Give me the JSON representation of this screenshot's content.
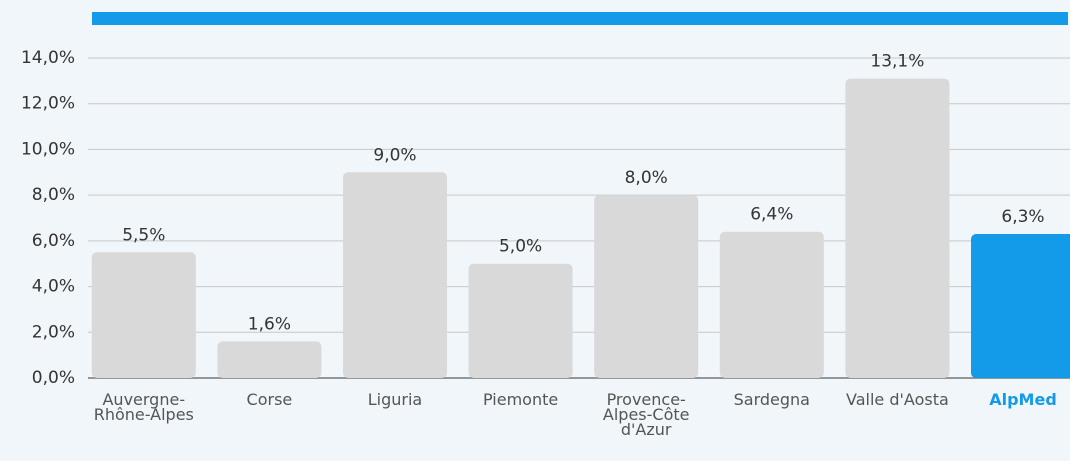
{
  "chart_data": {
    "type": "bar",
    "categories": [
      "Auvergne-Rhône-Alpes",
      "Corse",
      "Liguria",
      "Piemonte",
      "Provence-Alpes-Côte d'Azur",
      "Sardegna",
      "Valle d'Aosta",
      "AlpMed"
    ],
    "values": [
      5.5,
      1.6,
      9.0,
      5.0,
      8.0,
      6.4,
      13.1,
      6.3
    ],
    "value_labels": [
      "5,5%",
      "1,6%",
      "9,0%",
      "5,0%",
      "8,0%",
      "6,4%",
      "13,1%",
      "6,3%"
    ],
    "colors": [
      "#d9d9d9",
      "#d9d9d9",
      "#d9d9d9",
      "#d9d9d9",
      "#d9d9d9",
      "#d9d9d9",
      "#d9d9d9",
      "#139bea"
    ],
    "ylim": [
      0,
      14
    ],
    "yticks": [
      {
        "value": 0,
        "label": "0,0%"
      },
      {
        "value": 2,
        "label": "2,0%"
      },
      {
        "value": 4,
        "label": "4,0%"
      },
      {
        "value": 6,
        "label": "6,0%"
      },
      {
        "value": 8,
        "label": "8,0%"
      },
      {
        "value": 10,
        "label": "10,0%"
      },
      {
        "value": 12,
        "label": "12,0%"
      },
      {
        "value": 14,
        "label": "14,0%"
      }
    ],
    "grid": true
  }
}
